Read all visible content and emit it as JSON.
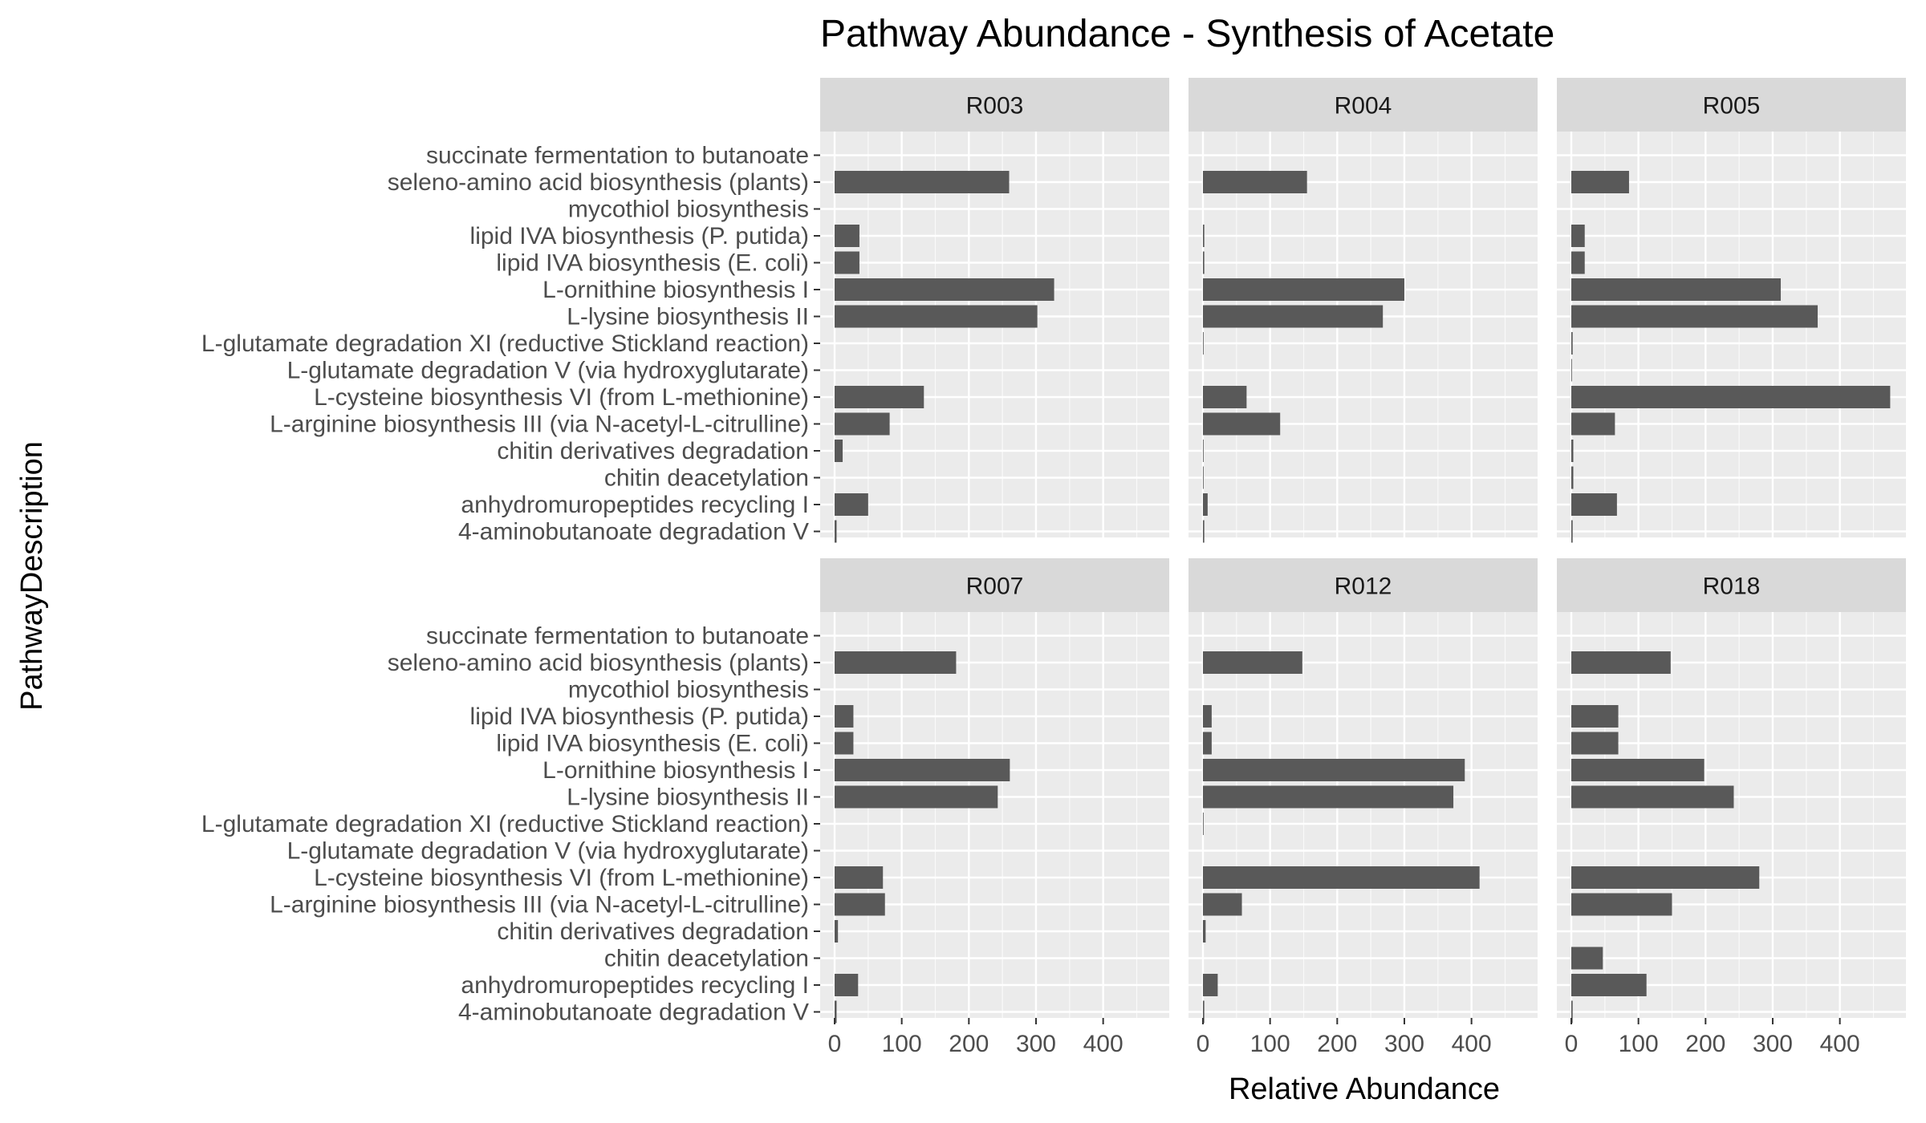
{
  "chart_data": {
    "type": "bar",
    "orientation": "horizontal",
    "title": "Pathway Abundance - Synthesis of Acetate",
    "xlabel": "Relative Abundance",
    "ylabel": "PathwayDescription",
    "xlim": [
      0,
      480
    ],
    "xticks": [
      "0",
      "100",
      "200",
      "300",
      "400"
    ],
    "grid": true,
    "categories": [
      "succinate fermentation to butanoate",
      "seleno-amino acid biosynthesis (plants)",
      "mycothiol biosynthesis",
      "lipid IVA biosynthesis (P. putida)",
      "lipid IVA biosynthesis (E. coli)",
      "L-ornithine biosynthesis I",
      "L-lysine biosynthesis II",
      "L-glutamate degradation XI (reductive Stickland reaction)",
      "L-glutamate degradation V (via hydroxyglutarate)",
      "L-cysteine biosynthesis VI (from L-methionine)",
      "L-arginine biosynthesis III (via N-acetyl-L-citrulline)",
      "chitin derivatives degradation",
      "chitin deacetylation",
      "anhydromuropeptides recycling I",
      "4-aminobutanoate degradation V"
    ],
    "panels": [
      {
        "name": "R003",
        "values": [
          0,
          260,
          0,
          37,
          37,
          327,
          302,
          0,
          0,
          133,
          82,
          12,
          0,
          50,
          3
        ]
      },
      {
        "name": "R004",
        "values": [
          0,
          155,
          0,
          2,
          2,
          300,
          268,
          1,
          0,
          65,
          115,
          1,
          1,
          7,
          2
        ]
      },
      {
        "name": "R005",
        "values": [
          0,
          86,
          0,
          20,
          20,
          312,
          367,
          2,
          1,
          475,
          65,
          3,
          3,
          68,
          2
        ]
      },
      {
        "name": "R007",
        "values": [
          0,
          181,
          0,
          28,
          28,
          261,
          243,
          0,
          0,
          72,
          75,
          5,
          0,
          35,
          3
        ]
      },
      {
        "name": "R012",
        "values": [
          0,
          148,
          0,
          13,
          13,
          390,
          373,
          1,
          0,
          412,
          58,
          4,
          0,
          22,
          2
        ]
      },
      {
        "name": "R018",
        "values": [
          0,
          148,
          0,
          70,
          70,
          198,
          242,
          0,
          0,
          280,
          150,
          0,
          47,
          112,
          2
        ]
      }
    ]
  },
  "colors": {
    "panel_background": "#ebebeb",
    "strip_background": "#d9d9d9",
    "grid": "#ffffff",
    "bar": "#595959",
    "axis_text": "#4d4d4d"
  }
}
